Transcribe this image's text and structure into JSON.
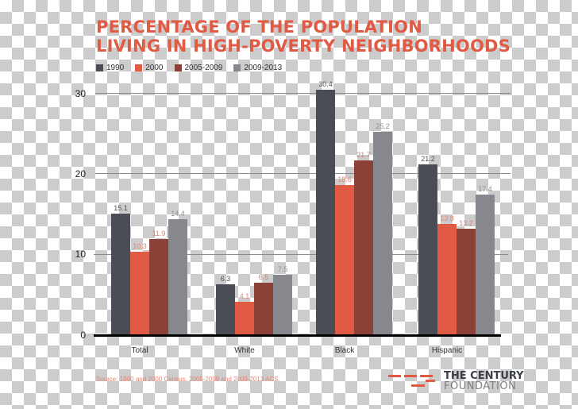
{
  "title": {
    "line1": "PERCENTAGE OF THE POPULATION",
    "line2": "LIVING IN HIGH-POVERTY NEIGHBORHOODS"
  },
  "legend": [
    {
      "label": "1990",
      "color": "#4a4d55"
    },
    {
      "label": "2000",
      "color": "#e05a44"
    },
    {
      "label": "2005-2009",
      "color": "#8b4137"
    },
    {
      "label": "2009-2013",
      "color": "#86888d"
    }
  ],
  "y_axis": {
    "ticks": [
      "0",
      "10",
      "20",
      "30"
    ]
  },
  "source": "Source: 1990 and 2000 Census, 2005-2009 and 2009-2013 ACS.",
  "logo": {
    "line1": "THE CENTURY",
    "line2": "FOUNDATION"
  },
  "chart_data": {
    "type": "bar",
    "title": "PERCENTAGE OF THE POPULATION LIVING IN HIGH-POVERTY NEIGHBORHOODS",
    "xlabel": "",
    "ylabel": "",
    "ylim": [
      0,
      30
    ],
    "yticks": [
      0,
      10,
      20,
      30
    ],
    "grid": true,
    "legend_position": "top-left",
    "categories": [
      "Total",
      "White",
      "Black",
      "Hispanic"
    ],
    "series": [
      {
        "name": "1990",
        "color": "#4a4d55",
        "values": [
          15.1,
          6.3,
          30.4,
          21.2
        ],
        "labels": [
          "15.1",
          "6.3",
          "30.4",
          "21.2"
        ]
      },
      {
        "name": "2000",
        "color": "#e05a44",
        "values": [
          10.3,
          4.1,
          18.6,
          13.8
        ],
        "labels": [
          "10.3",
          "4.1",
          "18.6",
          "13.8"
        ]
      },
      {
        "name": "2005-2009",
        "color": "#8b4137",
        "values": [
          11.9,
          6.5,
          21.7,
          13.2
        ],
        "labels": [
          "11.9",
          "6.5",
          "21.7",
          "13.2"
        ]
      },
      {
        "name": "2009-2013",
        "color": "#86888d",
        "values": [
          14.4,
          7.5,
          25.2,
          17.4
        ],
        "labels": [
          "14.4",
          "7.5",
          "25.2",
          "17.4"
        ]
      }
    ],
    "annotations": [
      "Source: 1990 and 2000 Census, 2005-2009 and 2009-2013 ACS."
    ]
  }
}
